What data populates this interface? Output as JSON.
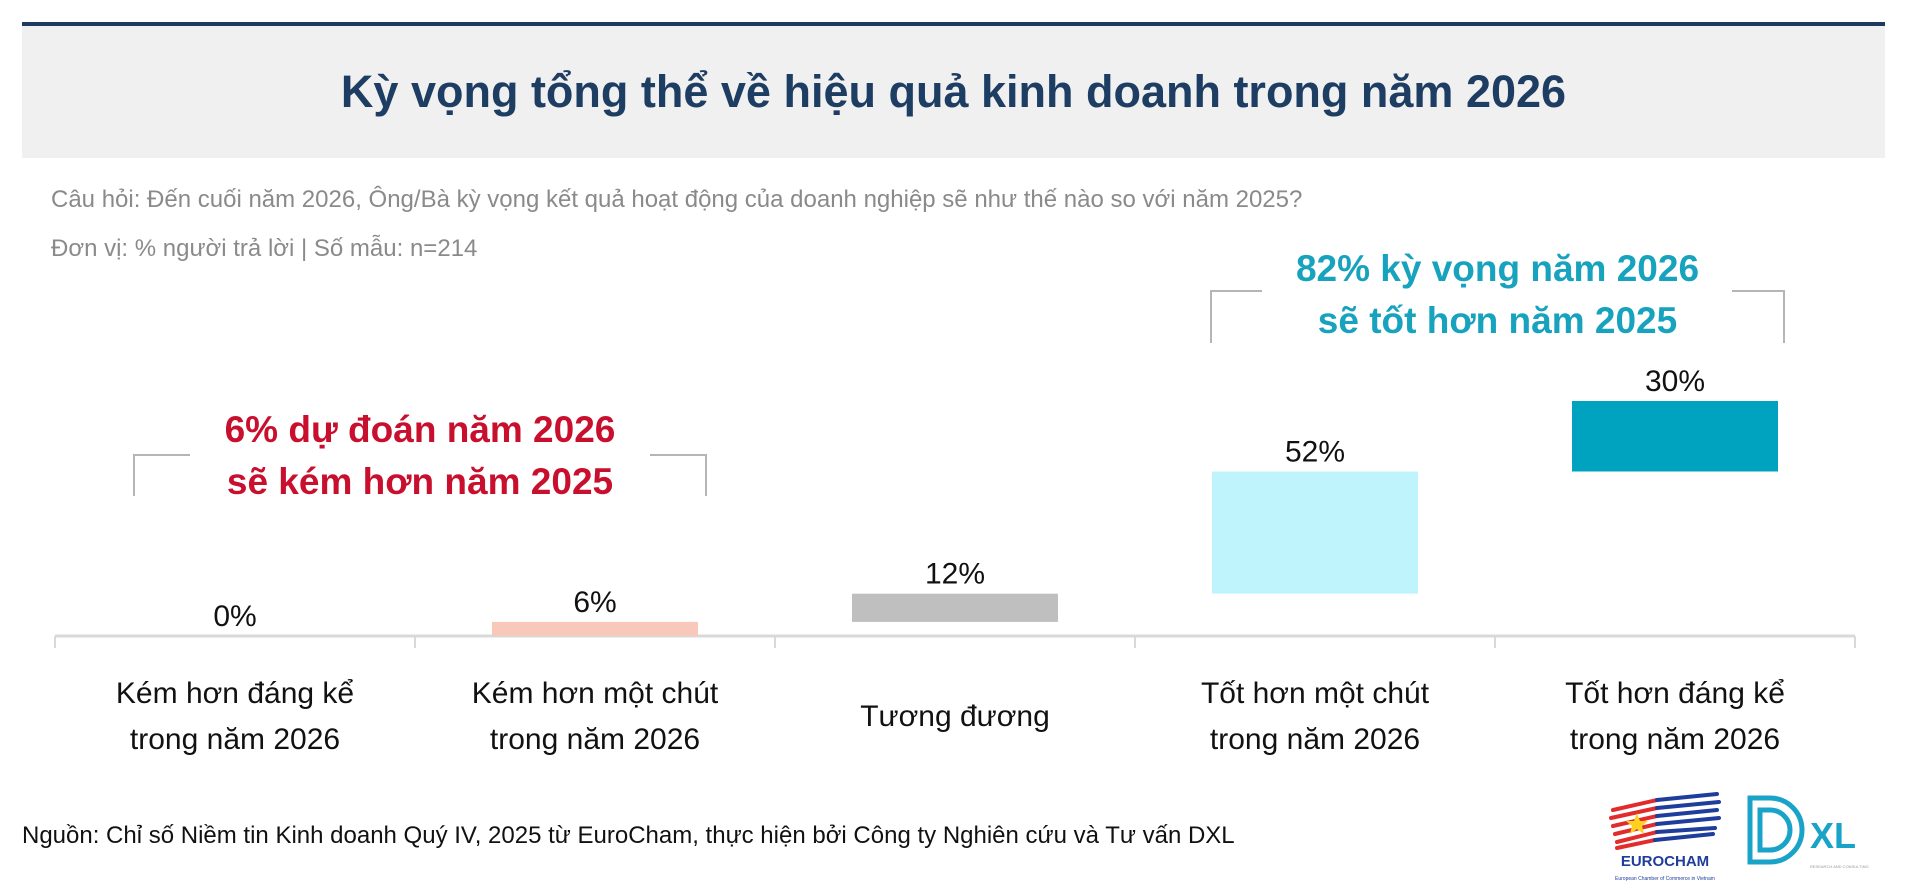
{
  "header": {
    "title": "Kỳ vọng tổng thể về hiệu quả kinh doanh trong năm 2026"
  },
  "subtitle": {
    "question": "Câu hỏi: Đến cuối năm 2026, Ông/Bà kỳ vọng kết quả hoạt động của doanh nghiệp sẽ như thế nào so với năm 2025?",
    "unit": "Đơn vị: % người trả lời | Số mẫu: n=214"
  },
  "annotations": {
    "negative": {
      "line1": "6% dự đoán năm 2026",
      "line2": "sẽ kém hơn năm 2025",
      "color": "#c8102e"
    },
    "positive": {
      "line1": "82% kỳ vọng năm 2026",
      "line2": "sẽ tốt hơn năm 2025",
      "color": "#17a2bd"
    }
  },
  "chart_data": {
    "type": "bar",
    "subtype": "waterfall",
    "categories": [
      [
        "Kém hơn đáng kể",
        "trong năm 2026"
      ],
      [
        "Kém hơn một chút",
        "trong năm 2026"
      ],
      [
        "Tương đương",
        ""
      ],
      [
        "Tốt hơn một chút",
        "trong năm 2026"
      ],
      [
        "Tốt hơn đáng kể",
        "trong năm 2026"
      ]
    ],
    "values": [
      0,
      6,
      12,
      52,
      30
    ],
    "labels": [
      "0%",
      "6%",
      "12%",
      "52%",
      "30%"
    ],
    "colors": [
      "#f8c8bb",
      "#f8c8bb",
      "#bfbfbf",
      "#c0f4fc",
      "#00a3bf"
    ],
    "ylim": [
      0,
      100
    ],
    "grid": false,
    "legend": "none"
  },
  "footer": {
    "source": "Nguồn: Chỉ số Niềm tin Kinh doanh Quý IV, 2025 từ EuroCham, thực hiện bởi Công ty Nghiên cứu và Tư vấn DXL",
    "logos": {
      "eurocham": "EUROCHAM",
      "eurocham_sub": "European Chamber of Commerce in Vietnam",
      "dxl": "XL",
      "dxl_sub": "RESEARCH AND CONSULTING"
    }
  }
}
